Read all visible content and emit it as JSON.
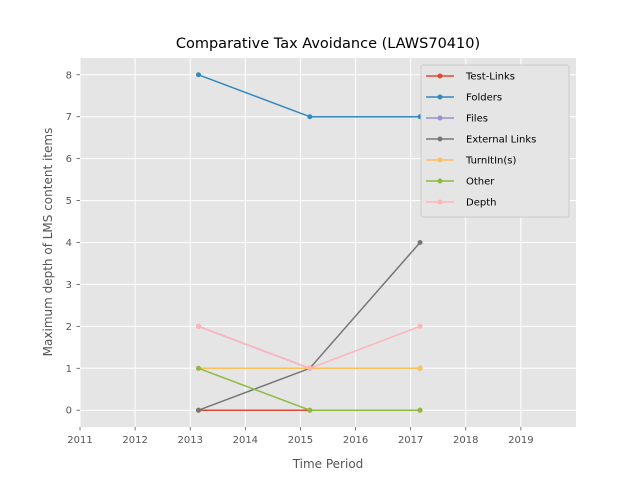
{
  "chart_data": {
    "type": "line",
    "title": "Comparative Tax Avoidance (LAWS70410)",
    "xlabel": "Time Period",
    "ylabel": "Maximum depth of LMS content items",
    "xlim": [
      2011,
      2020
    ],
    "ylim": [
      -0.4,
      8.4
    ],
    "xticks": [
      2011,
      2012,
      2013,
      2014,
      2015,
      2016,
      2017,
      2018,
      2019
    ],
    "yticks": [
      0,
      1,
      2,
      3,
      4,
      5,
      6,
      7,
      8
    ],
    "grid": true,
    "legend_position": "top-right",
    "x": [
      2013.15,
      2015.17,
      2017.17
    ],
    "series": [
      {
        "name": "Test-Links",
        "color": "#E24A33",
        "values": [
          0,
          0,
          0
        ]
      },
      {
        "name": "Folders",
        "color": "#348ABD",
        "values": [
          8,
          7,
          7
        ]
      },
      {
        "name": "Files",
        "color": "#988ED5",
        "values": [
          2,
          1,
          1
        ]
      },
      {
        "name": "External Links",
        "color": "#777777",
        "values": [
          0,
          1,
          4
        ]
      },
      {
        "name": "TurnItIn(s)",
        "color": "#FBC15E",
        "values": [
          1,
          1,
          1
        ]
      },
      {
        "name": "Other",
        "color": "#8EBA42",
        "values": [
          1,
          0,
          0
        ]
      },
      {
        "name": "Depth",
        "color": "#FFB5B8",
        "values": [
          2,
          1,
          2
        ]
      }
    ]
  }
}
